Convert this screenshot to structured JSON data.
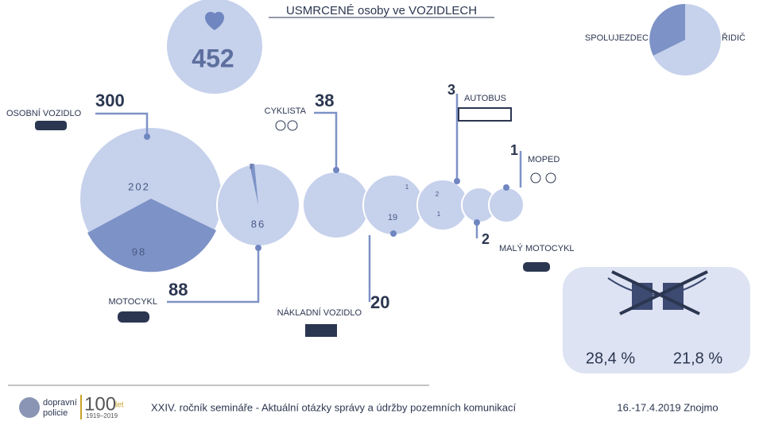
{
  "title": "USMRCENÉ osoby ve VOZIDLECH",
  "total": "452",
  "legend": {
    "passenger": "SPOLUJEZDEC",
    "driver": "ŘIDIČ"
  },
  "vehicles": [
    {
      "label": "OSOBNÍ VOZIDLO",
      "total": "300",
      "driver": "202",
      "passenger": "98"
    },
    {
      "label": "MOTOCYKL",
      "total": "88",
      "driver": "86",
      "passenger": "2"
    },
    {
      "label": "CYKLISTA",
      "total": "38"
    },
    {
      "label": "NÁKLADNÍ VOZIDLO",
      "total": "20",
      "driver": "19",
      "passenger": "1"
    },
    {
      "label": "AUTOBUS",
      "total": "3",
      "driver": "2",
      "passenger": "1"
    },
    {
      "label": "MOPED",
      "total": "1"
    },
    {
      "label": "MALÝ MOTOCYKL",
      "total": "2"
    }
  ],
  "percentages": [
    "28,4 %",
    "21,8 %"
  ],
  "footer": {
    "logo_line1": "dopravní",
    "logo_line2": "policie",
    "anniversary": "100",
    "anniversary_suffix": "let",
    "anniversary_years": "1919–2019",
    "seminar": "XXIV. ročník semináře - Aktuální otázky správy a údržby pozemních komunikací",
    "date": "16.-17.4.2019 Znojmo"
  }
}
